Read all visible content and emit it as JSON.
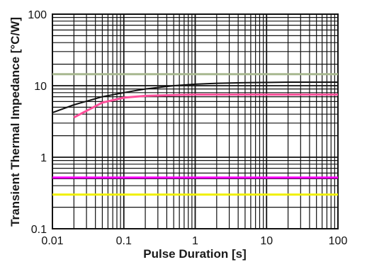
{
  "chart_data": {
    "type": "line",
    "title": "",
    "xlabel": "Pulse Duration [s]",
    "ylabel": "Transient Thermal Impedance [°C/W]",
    "x_scale": "log",
    "y_scale": "log",
    "xlim": [
      0.01,
      100
    ],
    "ylim": [
      0.1,
      100
    ],
    "x_tick_labels": [
      "0.01",
      "0.1",
      "1",
      "10",
      "100"
    ],
    "y_tick_labels": [
      "0.1",
      "1",
      "10",
      "100"
    ],
    "grid": true,
    "legend": "none",
    "series": [
      {
        "x": [
          0.01,
          0.02,
          0.05,
          0.1,
          0.2,
          0.5,
          1,
          2,
          5,
          10,
          20,
          50,
          100
        ],
        "y": [
          4.2,
          5.4,
          7.0,
          8.0,
          9.0,
          10.0,
          10.5,
          10.8,
          11.0,
          11.1,
          11.2,
          11.2,
          11.2
        ]
      },
      {
        "x": [
          0.02,
          0.05,
          0.1,
          0.2,
          0.5,
          1,
          2,
          5,
          10,
          20,
          50,
          100
        ],
        "y": [
          3.6,
          5.8,
          6.8,
          7.2,
          7.4,
          7.5,
          7.5,
          7.5,
          7.5,
          7.5,
          7.5,
          7.5
        ]
      },
      {
        "x": [
          0.01,
          0.1,
          1,
          10,
          100
        ],
        "y": [
          14.5,
          14.5,
          14.5,
          14.5,
          14.5
        ]
      },
      {
        "x": [
          0.01,
          0.1,
          1,
          10,
          100
        ],
        "y": [
          0.52,
          0.52,
          0.52,
          0.52,
          0.52
        ]
      },
      {
        "x": [
          0.01,
          0.1,
          1,
          10,
          100
        ],
        "y": [
          0.3,
          0.3,
          0.3,
          0.3,
          0.3
        ]
      }
    ],
    "colors": {
      "grid": "#111111",
      "series": [
        "#111111",
        "#ff4f9a",
        "#a8b890",
        "#ff00ff",
        "#f0f000"
      ]
    }
  }
}
